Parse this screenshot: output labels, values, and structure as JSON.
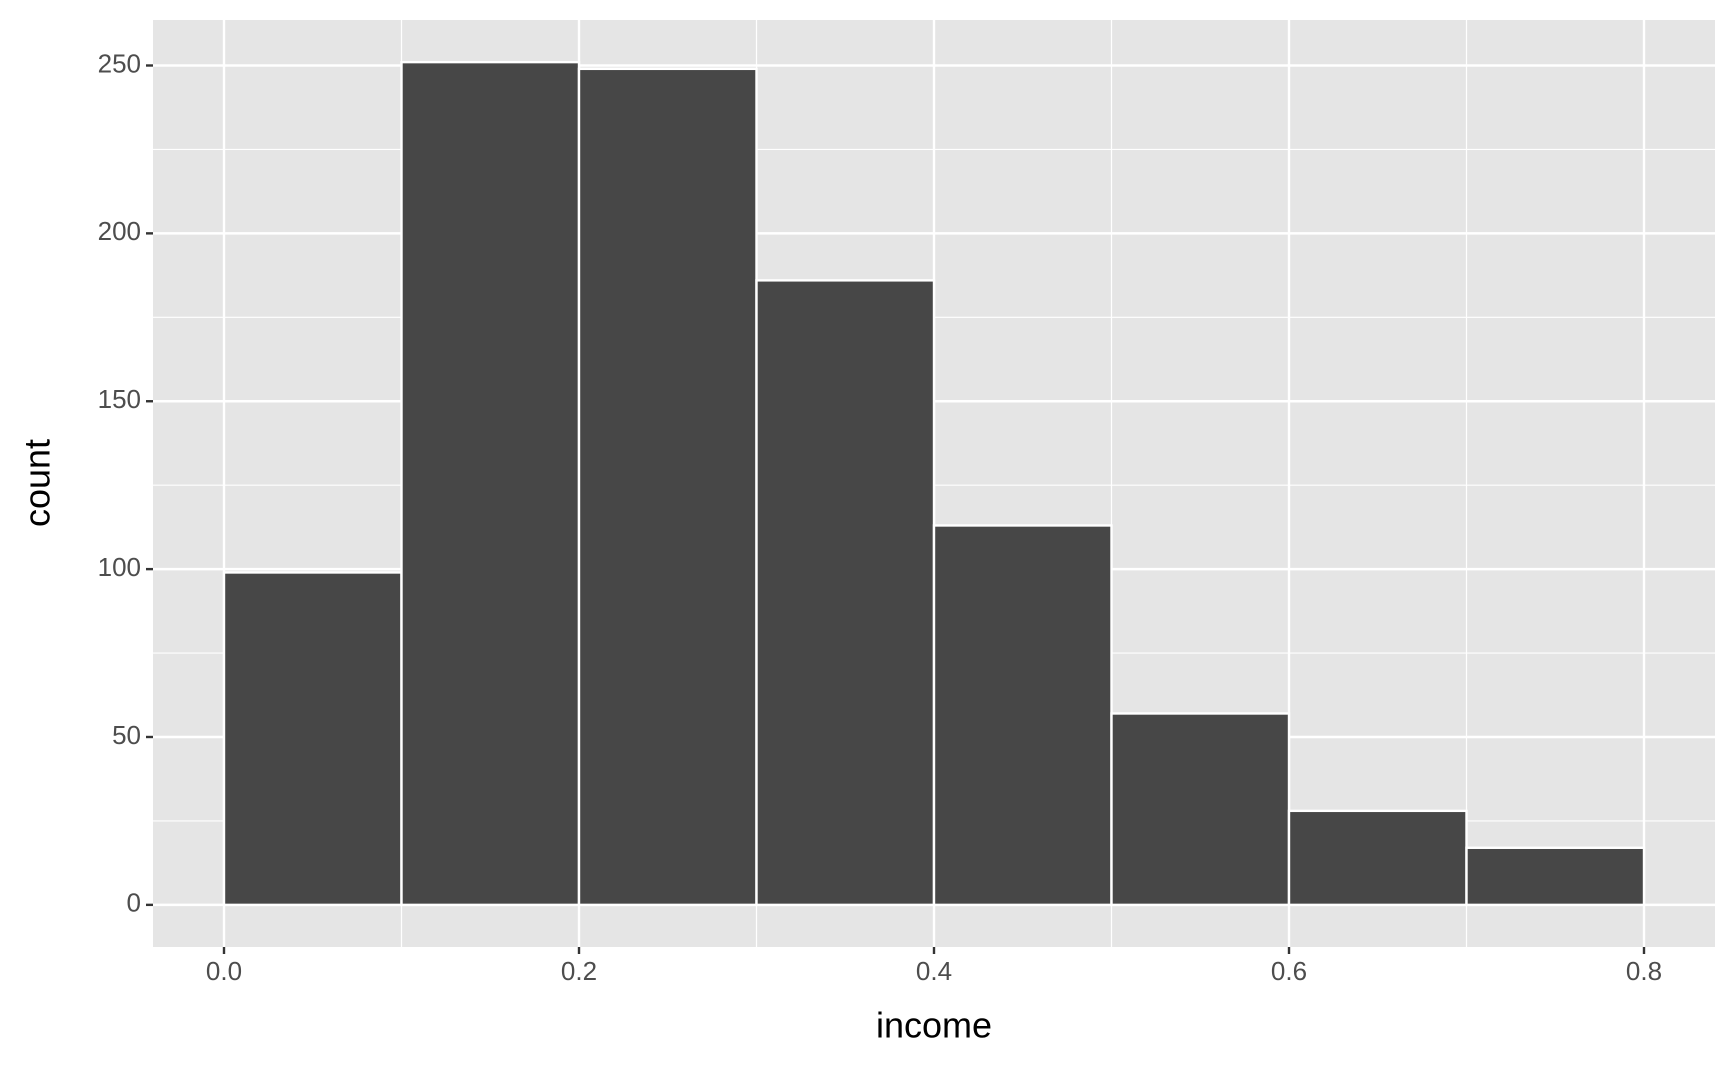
{
  "chart_data": {
    "type": "histogram",
    "xlabel": "income",
    "ylabel": "count",
    "bins": [
      0,
      0.1,
      0.2,
      0.3,
      0.4,
      0.5,
      0.6,
      0.7,
      0.8
    ],
    "values": [
      99,
      251,
      249,
      186,
      113,
      57,
      28,
      17
    ],
    "color": "#474747",
    "xlim": [
      -0.04,
      0.84
    ],
    "ylim": [
      -12.55,
      263.55
    ],
    "xticks": [
      {
        "value": 0,
        "label": "0.0"
      },
      0.2,
      0.4,
      0.6,
      0.8
    ],
    "yticks": [
      0,
      50,
      100,
      150,
      200,
      250
    ],
    "xminor": [
      0.1,
      0.3,
      0.5,
      0.7
    ],
    "yminor": [
      25,
      75,
      125,
      175,
      225
    ],
    "grid": true
  }
}
